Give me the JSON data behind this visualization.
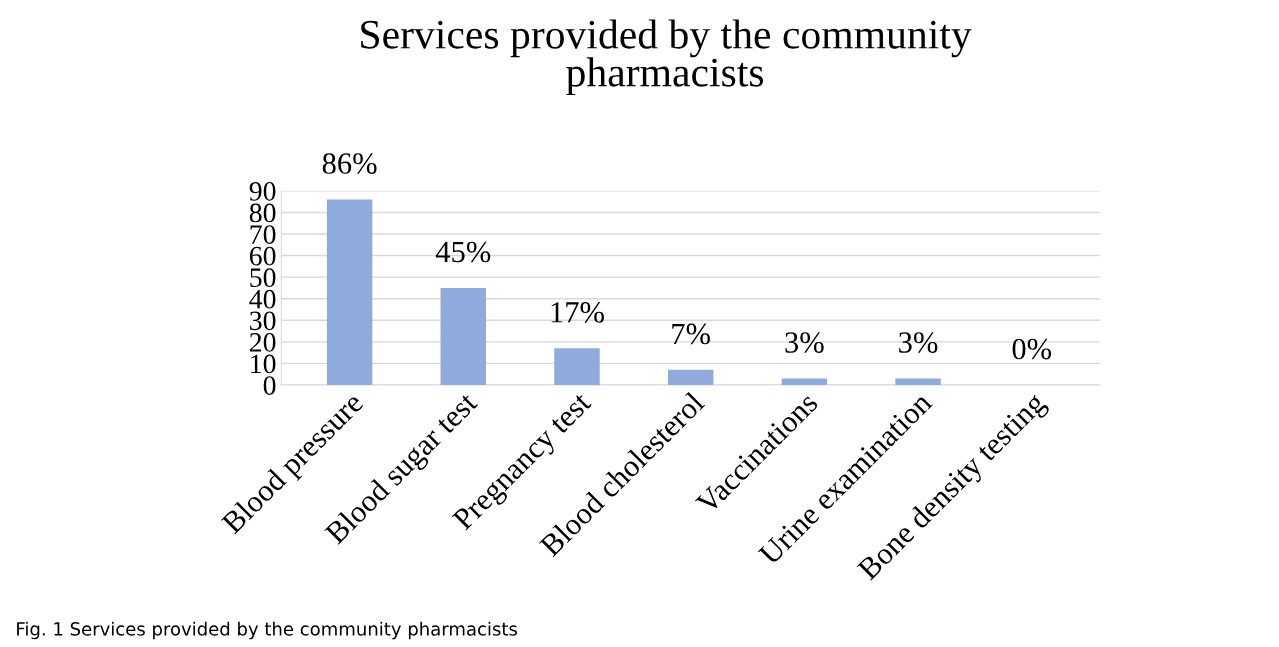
{
  "chart_data": {
    "type": "bar",
    "title": "Services provided by the community\npharmacists",
    "categories": [
      "Blood pressure",
      "Blood sugar test",
      "Pregnancy test",
      "Blood cholesterol",
      "Vaccinations",
      "Urine examination",
      "Bone density testing"
    ],
    "values": [
      86,
      45,
      17,
      7,
      3,
      3,
      0
    ],
    "value_labels": [
      "86%",
      "45%",
      "17%",
      "7%",
      "3%",
      "3%",
      "0%"
    ],
    "color": "#8faadc",
    "ylim": [
      0,
      90
    ],
    "yticks": [
      0,
      10,
      20,
      30,
      40,
      50,
      60,
      70,
      80,
      90
    ],
    "grid": "y",
    "annotations": [
      "Fig. 1 Services provided by the community pharmacists"
    ]
  }
}
